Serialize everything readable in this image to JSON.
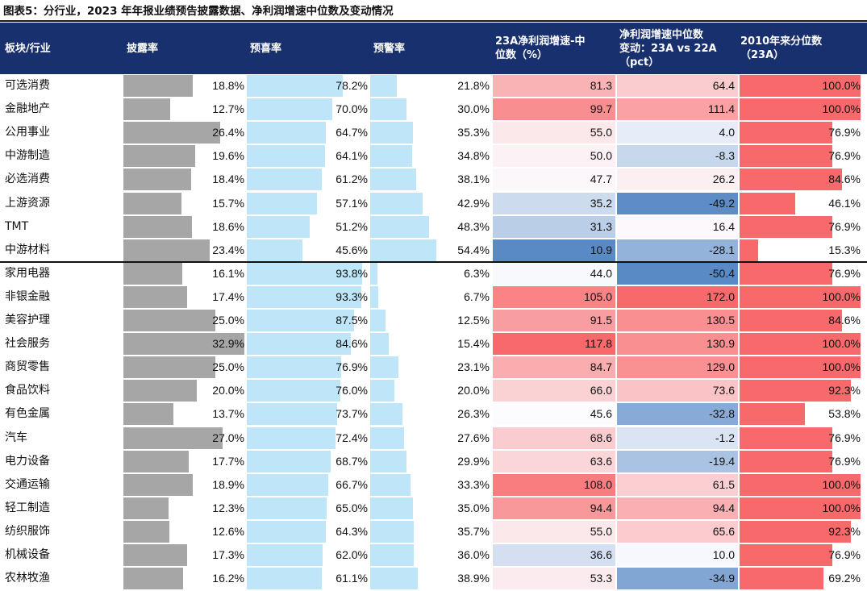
{
  "title": "图表5：分行业，2023 年年报业绩预告披露数据、净利润增速中位数及变动情况",
  "headers": {
    "sector": "板块/行业",
    "disclosure": "披露率",
    "positive": "预喜率",
    "warning": "预警率",
    "median_growth": "23A净利润增速-中\n位数（%）",
    "median_change": "净利润增速中位数\n变动：23A vs 22A\n（pct）",
    "percentile": "2010年来分位数\n（23A）"
  },
  "colors": {
    "header_bg": "#18306e",
    "disclosure_bar": "#a6a6a6",
    "positive_bar": "#bfe5f8",
    "warning_bar": "#bfe5f8",
    "heat_high": "#f8696b",
    "heat_mid": "#fcfcff",
    "heat_low": "#5a8ac6",
    "percentile_bar": "#f8696b"
  },
  "chart_data": {
    "type": "table",
    "title": "图表5：分行业，2023 年年报业绩预告披露数据、净利润增速中位数及变动情况",
    "columns": [
      "板块/行业",
      "披露率",
      "预喜率",
      "预警率",
      "23A净利润增速-中位数（%）",
      "净利润增速中位数变动：23A vs 22A（pct）",
      "2010年来分位数（23A）"
    ],
    "separator_after_row": 8,
    "rows": [
      {
        "name": "可选消费",
        "disclosure": "18.8%",
        "positive": "78.2%",
        "warning": "21.8%",
        "growth": "81.3",
        "change": "64.4",
        "percentile": "100.0%"
      },
      {
        "name": "金融地产",
        "disclosure": "12.7%",
        "positive": "70.0%",
        "warning": "30.0%",
        "growth": "99.7",
        "change": "111.4",
        "percentile": "100.0%"
      },
      {
        "name": "公用事业",
        "disclosure": "26.4%",
        "positive": "64.7%",
        "warning": "35.3%",
        "growth": "55.0",
        "change": "4.0",
        "percentile": "76.9%"
      },
      {
        "name": "中游制造",
        "disclosure": "19.6%",
        "positive": "64.1%",
        "warning": "34.8%",
        "growth": "50.0",
        "change": "-8.3",
        "percentile": "76.9%"
      },
      {
        "name": "必选消费",
        "disclosure": "18.4%",
        "positive": "61.2%",
        "warning": "38.1%",
        "growth": "47.7",
        "change": "26.2",
        "percentile": "84.6%"
      },
      {
        "name": "上游资源",
        "disclosure": "15.7%",
        "positive": "57.1%",
        "warning": "42.9%",
        "growth": "35.2",
        "change": "-49.2",
        "percentile": "46.1%"
      },
      {
        "name": "TMT",
        "disclosure": "18.6%",
        "positive": "51.2%",
        "warning": "48.3%",
        "growth": "31.3",
        "change": "16.4",
        "percentile": "76.9%"
      },
      {
        "name": "中游材料",
        "disclosure": "23.4%",
        "positive": "45.6%",
        "warning": "54.4%",
        "growth": "10.9",
        "change": "-28.1",
        "percentile": "15.3%"
      },
      {
        "name": "家用电器",
        "disclosure": "16.1%",
        "positive": "93.8%",
        "warning": "6.3%",
        "growth": "44.0",
        "change": "-50.4",
        "percentile": "76.9%"
      },
      {
        "name": "非银金融",
        "disclosure": "17.4%",
        "positive": "93.3%",
        "warning": "6.7%",
        "growth": "105.0",
        "change": "172.0",
        "percentile": "100.0%"
      },
      {
        "name": "美容护理",
        "disclosure": "25.0%",
        "positive": "87.5%",
        "warning": "12.5%",
        "growth": "91.5",
        "change": "130.5",
        "percentile": "84.6%"
      },
      {
        "name": "社会服务",
        "disclosure": "32.9%",
        "positive": "84.6%",
        "warning": "15.4%",
        "growth": "117.8",
        "change": "130.9",
        "percentile": "100.0%"
      },
      {
        "name": "商贸零售",
        "disclosure": "25.0%",
        "positive": "76.9%",
        "warning": "23.1%",
        "growth": "84.7",
        "change": "129.0",
        "percentile": "100.0%"
      },
      {
        "name": "食品饮料",
        "disclosure": "20.0%",
        "positive": "76.0%",
        "warning": "20.0%",
        "growth": "66.0",
        "change": "73.6",
        "percentile": "92.3%"
      },
      {
        "name": "有色金属",
        "disclosure": "13.7%",
        "positive": "73.7%",
        "warning": "26.3%",
        "growth": "45.6",
        "change": "-32.8",
        "percentile": "53.8%"
      },
      {
        "name": "汽车",
        "disclosure": "27.0%",
        "positive": "72.4%",
        "warning": "27.6%",
        "growth": "68.6",
        "change": "-1.2",
        "percentile": "76.9%"
      },
      {
        "name": "电力设备",
        "disclosure": "17.7%",
        "positive": "68.7%",
        "warning": "29.9%",
        "growth": "63.6",
        "change": "-19.4",
        "percentile": "76.9%"
      },
      {
        "name": "交通运输",
        "disclosure": "18.9%",
        "positive": "66.7%",
        "warning": "33.3%",
        "growth": "108.0",
        "change": "61.5",
        "percentile": "100.0%"
      },
      {
        "name": "轻工制造",
        "disclosure": "12.3%",
        "positive": "65.0%",
        "warning": "35.0%",
        "growth": "94.4",
        "change": "94.4",
        "percentile": "100.0%"
      },
      {
        "name": "纺织服饰",
        "disclosure": "12.6%",
        "positive": "64.3%",
        "warning": "35.7%",
        "growth": "55.0",
        "change": "65.6",
        "percentile": "92.3%"
      },
      {
        "name": "机械设备",
        "disclosure": "17.3%",
        "positive": "62.0%",
        "warning": "36.0%",
        "growth": "36.6",
        "change": "10.0",
        "percentile": "76.9%"
      },
      {
        "name": "农林牧渔",
        "disclosure": "16.2%",
        "positive": "61.1%",
        "warning": "38.9%",
        "growth": "53.3",
        "change": "-34.9",
        "percentile": "69.2%"
      }
    ]
  }
}
